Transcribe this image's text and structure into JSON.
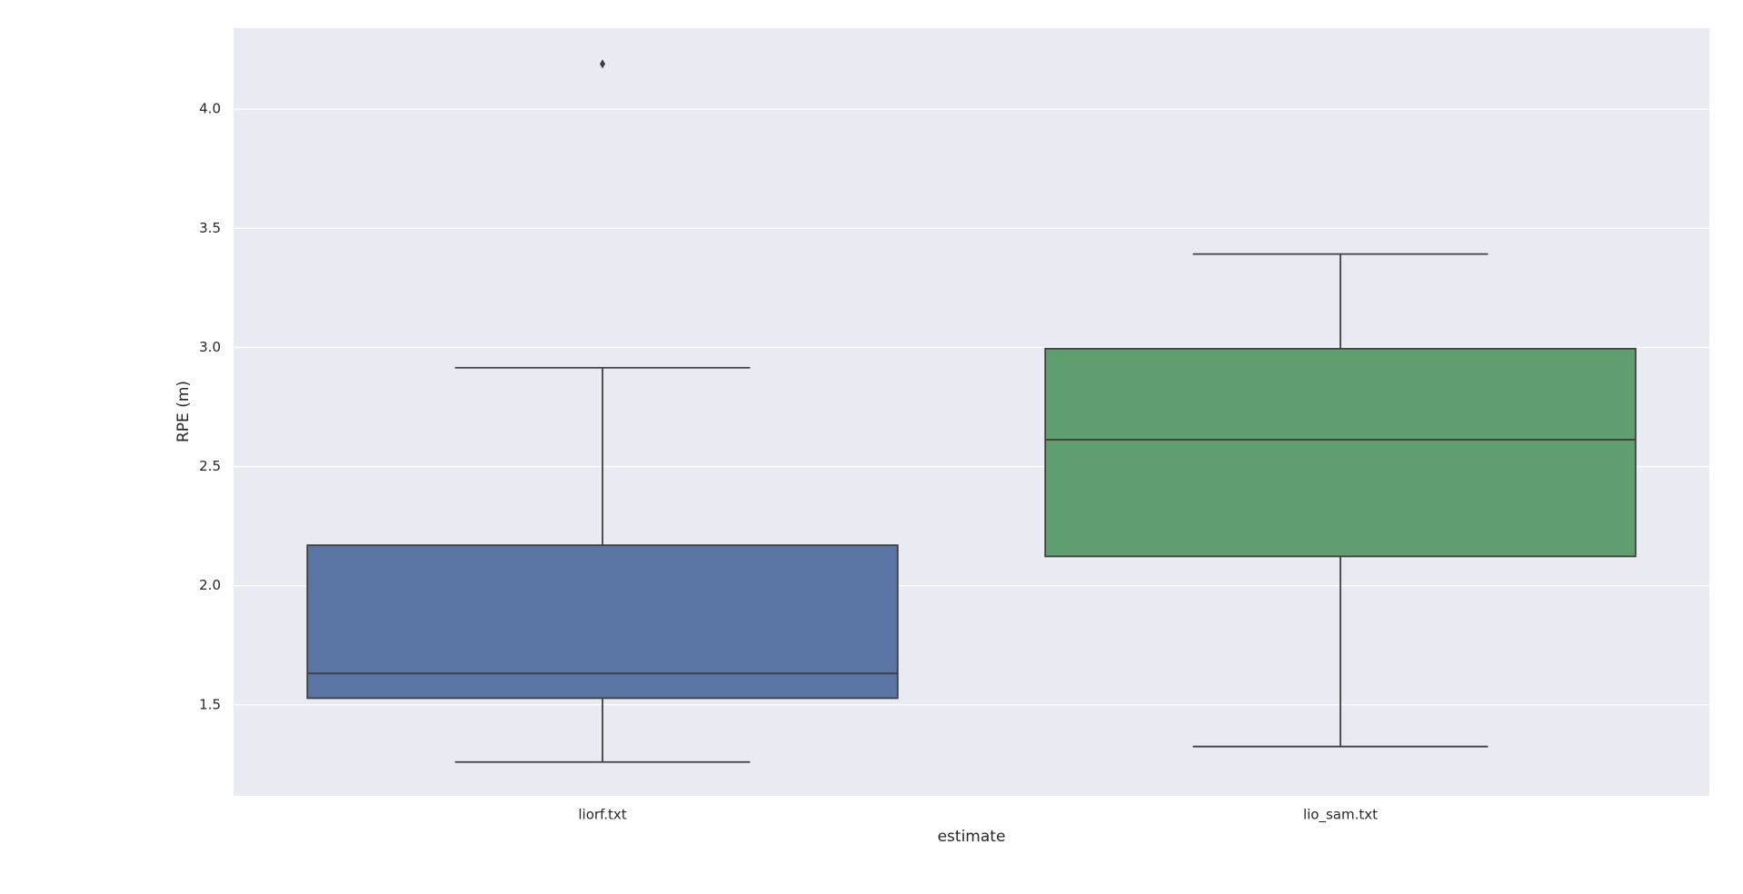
{
  "chart_data": {
    "type": "box",
    "x_label": "estimate",
    "y_label": "RPE (m)",
    "categories": [
      "liorf.txt",
      "lio_sam.txt"
    ],
    "colors": [
      "#5975a4",
      "#5f9e6e"
    ],
    "boxes": [
      {
        "whislo": 1.26,
        "q1": 1.528,
        "med": 1.632,
        "q3": 2.17,
        "whishi": 2.915,
        "fliers": [
          4.19
        ]
      },
      {
        "whislo": 1.325,
        "q1": 2.123,
        "med": 2.613,
        "q3": 2.995,
        "whishi": 3.392,
        "fliers": []
      }
    ],
    "ylim": [
      1.118,
      4.34
    ],
    "yticks": [
      {
        "value": 1.5,
        "label": "1.5"
      },
      {
        "value": 2,
        "label": "2.0"
      },
      {
        "value": 2.5,
        "label": "2.5"
      },
      {
        "value": 3,
        "label": "3.0"
      },
      {
        "value": 3.5,
        "label": "3.5"
      },
      {
        "value": 4,
        "label": "4.0"
      }
    ],
    "grid": true
  }
}
